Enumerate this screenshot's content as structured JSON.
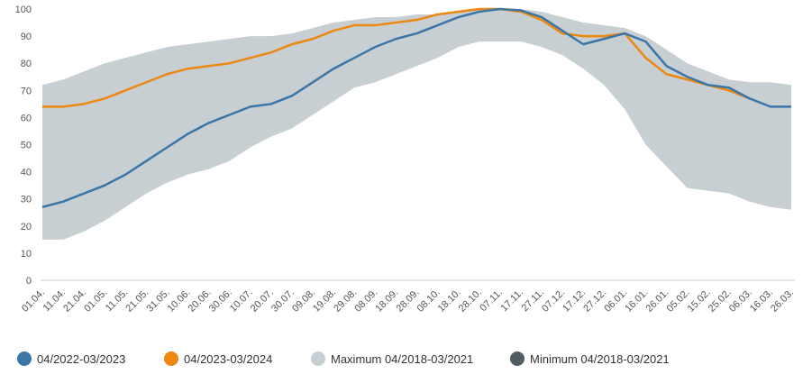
{
  "chart_data": {
    "type": "line",
    "categories": [
      "01.04.",
      "11.04.",
      "21.04.",
      "01.05.",
      "11.05.",
      "21.05.",
      "31.05.",
      "10.06.",
      "20.06.",
      "30.06.",
      "10.07.",
      "20.07.",
      "30.07.",
      "09.08.",
      "19.08.",
      "29.08.",
      "08.09.",
      "18.09.",
      "28.09.",
      "08.10.",
      "18.10.",
      "28.10.",
      "07.11.",
      "17.11.",
      "27.11.",
      "07.12.",
      "17.12.",
      "27.12.",
      "06.01.",
      "16.01.",
      "26.01.",
      "05.02.",
      "15.02.",
      "25.02.",
      "06.03.",
      "16.03.",
      "26.03."
    ],
    "series": [
      {
        "name": "04/2022-03/2023",
        "color": "#3a76a8",
        "values": [
          27,
          29,
          32,
          35,
          39,
          44,
          49,
          54,
          58,
          61,
          64,
          65,
          68,
          73,
          78,
          82,
          86,
          89,
          91,
          94,
          97,
          99,
          100,
          99.5,
          97,
          92,
          87,
          89,
          91,
          88,
          79,
          75,
          72,
          71,
          67,
          64,
          64
        ]
      },
      {
        "name": "04/2023-03/2024",
        "color": "#ec870f",
        "values": [
          64,
          64,
          65,
          67,
          70,
          73,
          76,
          78,
          79,
          80,
          82,
          84,
          87,
          89,
          92,
          94,
          94,
          95,
          96,
          98,
          99,
          100,
          100,
          99,
          96,
          91,
          90,
          90,
          91,
          82,
          76,
          74,
          72,
          70,
          67,
          null,
          null
        ]
      },
      {
        "name": "Maximum 04/2018-03/2021",
        "color": "#c8cfd3",
        "values": [
          72,
          74,
          77,
          80,
          82,
          84,
          86,
          87,
          88,
          89,
          90,
          90,
          91,
          93,
          95,
          96,
          97,
          97,
          98,
          98,
          99,
          100,
          100,
          100,
          99,
          97,
          95,
          94,
          93,
          90,
          85,
          80,
          77,
          74,
          73,
          73,
          72
        ]
      },
      {
        "name": "Minimum 04/2018-03/2021",
        "color": "#525c63",
        "values": [
          15,
          15,
          18,
          22,
          27,
          32,
          36,
          39,
          41,
          44,
          49,
          53,
          56,
          61,
          66,
          71,
          73,
          76,
          79,
          82,
          86,
          88,
          88,
          88,
          86,
          83,
          78,
          72,
          63,
          50,
          42,
          34,
          33,
          32,
          29,
          27,
          26
        ]
      }
    ],
    "ylim": [
      0,
      100
    ],
    "yticks": [
      0,
      10,
      20,
      30,
      40,
      50,
      60,
      70,
      80,
      90,
      100
    ],
    "grid": false
  }
}
